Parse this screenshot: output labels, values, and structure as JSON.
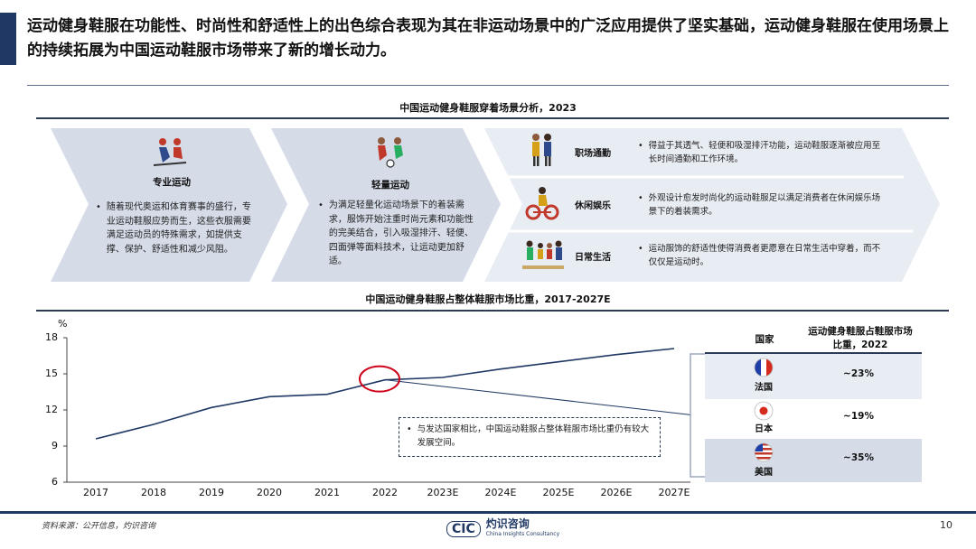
{
  "headline": "运动健身鞋服在功能性、时尚性和舒适性上的出色综合表现为其在非运动场景中的广泛应用提供了坚实基础，运动健身鞋服在使用场景上的持续拓展为中国运动鞋服市场带来了新的增长动力。",
  "scene_section": {
    "title": "中国运动健身鞋服穿着场景分析，2023",
    "chevrons": [
      {
        "label": "专业运动",
        "icon": "skiers-icon",
        "text": "随着现代奥运和体育赛事的盛行，专业运动鞋服应势而生，这些衣服需要满足运动员的特殊需求，如提供支撑、保护、舒适性和减少风阻。"
      },
      {
        "label": "轻量运动",
        "icon": "soccer-players-icon",
        "text": "为满足轻量化运动场景下的着装需求，服饰开始注重时尚元素和功能性的完美结合，引入吸湿排汗、轻便、四面弹等面料技术，让运动更加舒适。"
      }
    ],
    "scenes": [
      {
        "label": "职场通勤",
        "icon": "commuters-icon",
        "text": "得益于其透气、轻便和吸湿排汗功能，运动鞋服逐渐被应用至长时间通勤和工作环境。"
      },
      {
        "label": "休闲娱乐",
        "icon": "cyclist-icon",
        "text": "外观设计愈发时尚化的运动鞋服足以满足消费者在休闲娱乐场景下的着装需求。"
      },
      {
        "label": "日常生活",
        "icon": "family-icon",
        "text": "运动服饰的舒适性使得消费者更愿意在日常生活中穿着，而不仅仅是运动时。"
      }
    ],
    "colors": {
      "chevron": "#d5dce8",
      "chevron_light": "#e8ecf3"
    }
  },
  "chart_section": {
    "title": "中国运动健身鞋服占整体鞋服市场比重，2017-2027E",
    "annotation": "与发达国家相比，中国运动鞋服占整体鞋服市场比重仍有较大发展空间。",
    "line_color": "#1f3864"
  },
  "chart_data": {
    "type": "line",
    "x": [
      "2017",
      "2018",
      "2019",
      "2020",
      "2021",
      "2022",
      "2023E",
      "2024E",
      "2025E",
      "2026E",
      "2027E"
    ],
    "series": [
      {
        "values": [
          9.6,
          10.8,
          12.2,
          13.1,
          13.3,
          14.5,
          14.7,
          15.4,
          16.0,
          16.6,
          17.1
        ]
      }
    ],
    "ylabel": "%",
    "ylim": [
      6,
      18
    ],
    "yticks": [
      6,
      9,
      12,
      15,
      18
    ],
    "highlight_year": "2022",
    "grid": false
  },
  "side_table": {
    "header_country": "国家",
    "header_share": "运动健身鞋服占鞋服市场比重，2022",
    "rows": [
      {
        "country": "法国",
        "flag": "france-flag-icon",
        "value": "~23%"
      },
      {
        "country": "日本",
        "flag": "japan-flag-icon",
        "value": "~19%"
      },
      {
        "country": "美国",
        "flag": "usa-flag-icon",
        "value": "~35%"
      }
    ]
  },
  "footer": {
    "source": "资料来源：公开信息，灼识咨询",
    "logo_mark": "CIC",
    "logo_name": "灼识咨询",
    "logo_sub": "China Insights Consultancy",
    "page_number": "10"
  }
}
